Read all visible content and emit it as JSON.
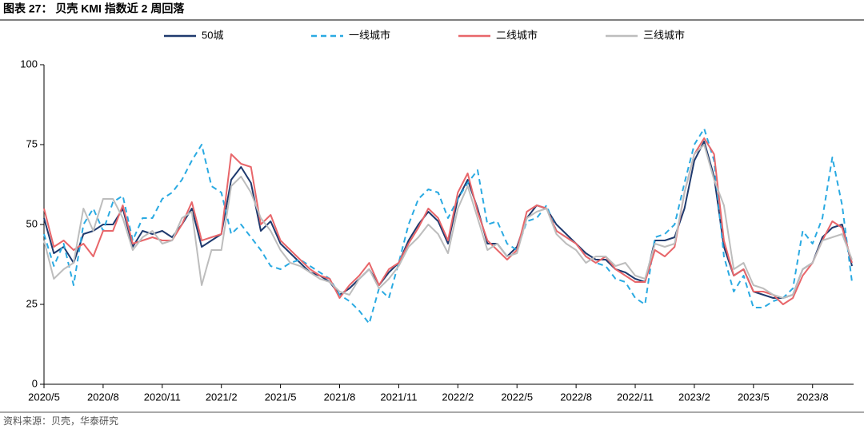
{
  "chart_data": {
    "type": "line",
    "title": "图表 27： 贝壳 KMI 指数近 2 周回落",
    "source": "资料来源：贝壳，华泰研究",
    "categories": [
      "2020/5",
      null,
      null,
      null,
      null,
      null,
      "2020/8",
      null,
      null,
      null,
      null,
      null,
      "2020/11",
      null,
      null,
      null,
      null,
      null,
      "2021/2",
      null,
      null,
      null,
      null,
      null,
      "2021/5",
      null,
      null,
      null,
      null,
      null,
      "2021/8",
      null,
      null,
      null,
      null,
      null,
      "2021/11",
      null,
      null,
      null,
      null,
      null,
      "2022/2",
      null,
      null,
      null,
      null,
      null,
      "2022/5",
      null,
      null,
      null,
      null,
      null,
      "2022/8",
      null,
      null,
      null,
      null,
      null,
      "2022/11",
      null,
      null,
      null,
      null,
      null,
      "2023/2",
      null,
      null,
      null,
      null,
      null,
      "2023/5",
      null,
      null,
      null,
      null,
      null,
      "2023/8",
      null,
      null,
      null,
      null
    ],
    "series": [
      {
        "name": "50城",
        "color": "#1f3a6e",
        "dash": false,
        "values": [
          52,
          41,
          43,
          38,
          47,
          48,
          50,
          50,
          55,
          43,
          48,
          47,
          48,
          46,
          50,
          55,
          43,
          45,
          47,
          64,
          68,
          63,
          48,
          51,
          44,
          41,
          38,
          35,
          34,
          32,
          28,
          30,
          33,
          36,
          31,
          35,
          38,
          45,
          50,
          54,
          51,
          44,
          58,
          64,
          55,
          44,
          44,
          40,
          43,
          52,
          56,
          55,
          50,
          47,
          44,
          41,
          39,
          39,
          36,
          35,
          33,
          32,
          45,
          45,
          46,
          55,
          70,
          76,
          65,
          43,
          34,
          36,
          29,
          28,
          27,
          27,
          28,
          36,
          38,
          46,
          49,
          50,
          37
        ]
      },
      {
        "name": "一线城市",
        "color": "#2aaae2",
        "dash": true,
        "values": [
          47,
          37,
          44,
          31,
          50,
          55,
          48,
          57,
          59,
          45,
          52,
          52,
          58,
          60,
          64,
          70,
          75,
          62,
          60,
          47,
          50,
          46,
          42,
          37,
          36,
          38,
          39,
          37,
          35,
          33,
          28,
          26,
          23,
          19,
          30,
          27,
          38,
          50,
          58,
          61,
          60,
          52,
          58,
          63,
          67,
          50,
          51,
          44,
          42,
          51,
          52,
          56,
          48,
          46,
          44,
          40,
          38,
          37,
          33,
          32,
          27,
          25,
          46,
          47,
          50,
          63,
          75,
          80,
          70,
          40,
          29,
          34,
          24,
          24,
          26,
          27,
          30,
          48,
          44,
          52,
          71,
          56,
          32
        ]
      },
      {
        "name": "二线城市",
        "color": "#e8666a",
        "dash": false,
        "values": [
          55,
          43,
          45,
          42,
          44,
          40,
          48,
          48,
          56,
          44,
          45,
          46,
          45,
          45,
          50,
          57,
          45,
          46,
          47,
          72,
          69,
          68,
          50,
          53,
          45,
          42,
          39,
          36,
          34,
          33,
          27,
          31,
          34,
          38,
          31,
          36,
          38,
          44,
          49,
          55,
          52,
          45,
          60,
          66,
          54,
          45,
          42,
          39,
          42,
          54,
          56,
          55,
          48,
          46,
          44,
          40,
          38,
          40,
          36,
          34,
          32,
          32,
          42,
          40,
          43,
          60,
          72,
          77,
          72,
          45,
          34,
          36,
          29,
          29,
          28,
          25,
          27,
          34,
          38,
          45,
          51,
          49,
          38
        ]
      },
      {
        "name": "三线城市",
        "color": "#bdbdbd",
        "dash": false,
        "values": [
          45,
          33,
          36,
          38,
          55,
          48,
          58,
          58,
          52,
          42,
          46,
          48,
          44,
          45,
          52,
          54,
          31,
          42,
          42,
          62,
          65,
          60,
          52,
          48,
          42,
          38,
          37,
          35,
          33,
          32,
          29,
          28,
          33,
          36,
          30,
          33,
          37,
          43,
          46,
          50,
          47,
          41,
          55,
          62,
          52,
          42,
          44,
          40,
          41,
          52,
          54,
          55,
          47,
          44,
          42,
          38,
          40,
          40,
          37,
          38,
          34,
          33,
          44,
          43,
          44,
          60,
          72,
          75,
          64,
          56,
          36,
          38,
          31,
          30,
          28,
          27,
          28,
          36,
          38,
          45,
          46,
          47,
          39
        ]
      }
    ],
    "ylim": [
      0,
      100
    ],
    "yticks": [
      0,
      25,
      50,
      75,
      100
    ],
    "grid": false
  }
}
